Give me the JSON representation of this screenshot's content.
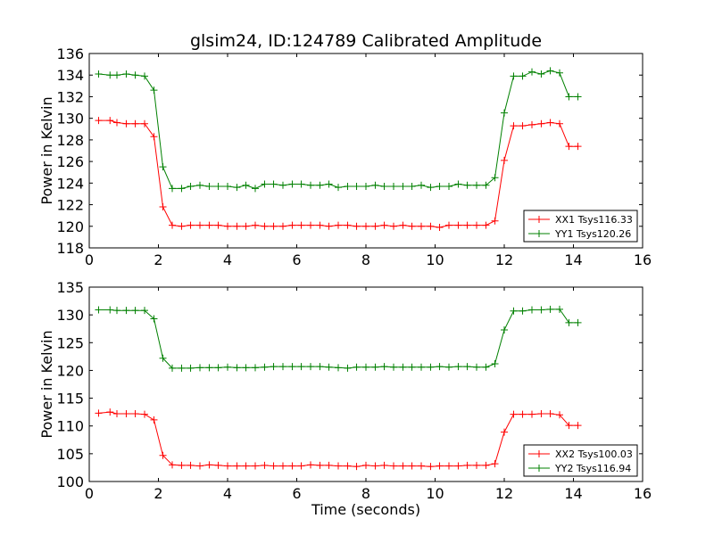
{
  "title": "glsim24, ID:124789 Calibrated Amplitude",
  "chart_data": [
    {
      "type": "line",
      "title": "glsim24, ID:124789 Calibrated Amplitude",
      "xlabel": "",
      "ylabel": "Power in Kelvin",
      "xlim": [
        0,
        16
      ],
      "ylim": [
        118,
        136
      ],
      "xticks": [
        "0",
        "2",
        "4",
        "6",
        "8",
        "10",
        "12",
        "14",
        "16"
      ],
      "yticks": [
        "118",
        "120",
        "122",
        "124",
        "126",
        "128",
        "130",
        "132",
        "134",
        "136"
      ],
      "legend_position": "lower-right",
      "x": [
        0.27,
        0.6,
        0.8,
        1.07,
        1.33,
        1.6,
        1.87,
        2.13,
        2.4,
        2.67,
        2.93,
        3.2,
        3.47,
        3.73,
        4.0,
        4.27,
        4.53,
        4.8,
        5.07,
        5.33,
        5.6,
        5.87,
        6.13,
        6.4,
        6.67,
        6.93,
        7.2,
        7.47,
        7.73,
        8.0,
        8.27,
        8.53,
        8.8,
        9.07,
        9.33,
        9.6,
        9.87,
        10.13,
        10.4,
        10.67,
        10.93,
        11.2,
        11.47,
        11.73,
        12.0,
        12.27,
        12.53,
        12.8,
        13.07,
        13.33,
        13.6,
        13.87,
        14.13
      ],
      "series": [
        {
          "name": "XX1 Tsys116.33",
          "color": "#ff0000",
          "values": [
            129.8,
            129.8,
            129.6,
            129.5,
            129.5,
            129.5,
            128.3,
            121.8,
            120.1,
            120.0,
            120.1,
            120.1,
            120.1,
            120.1,
            120.0,
            120.0,
            120.0,
            120.1,
            120.0,
            120.0,
            120.0,
            120.1,
            120.1,
            120.1,
            120.1,
            120.0,
            120.1,
            120.1,
            120.0,
            120.0,
            120.0,
            120.1,
            120.0,
            120.1,
            120.0,
            120.0,
            120.0,
            119.9,
            120.1,
            120.1,
            120.1,
            120.1,
            120.1,
            120.5,
            126.1,
            129.3,
            129.3,
            129.4,
            129.5,
            129.6,
            129.5,
            127.4,
            127.4
          ]
        },
        {
          "name": "YY1 Tsys120.26",
          "color": "#008000",
          "values": [
            134.1,
            134.0,
            134.0,
            134.1,
            134.0,
            133.9,
            132.6,
            125.5,
            123.5,
            123.5,
            123.7,
            123.8,
            123.7,
            123.7,
            123.7,
            123.6,
            123.8,
            123.5,
            123.9,
            123.9,
            123.8,
            123.9,
            123.9,
            123.8,
            123.8,
            123.9,
            123.6,
            123.7,
            123.7,
            123.7,
            123.8,
            123.7,
            123.7,
            123.7,
            123.7,
            123.8,
            123.6,
            123.7,
            123.7,
            123.9,
            123.8,
            123.8,
            123.8,
            124.5,
            130.5,
            133.9,
            133.9,
            134.3,
            134.1,
            134.4,
            134.2,
            132.0,
            132.0
          ]
        }
      ]
    },
    {
      "type": "line",
      "title": "",
      "xlabel": "Time (seconds)",
      "ylabel": "Power in Kelvin",
      "xlim": [
        0,
        16
      ],
      "ylim": [
        100,
        135
      ],
      "xticks": [
        "0",
        "2",
        "4",
        "6",
        "8",
        "10",
        "12",
        "14",
        "16"
      ],
      "yticks": [
        "100",
        "105",
        "110",
        "115",
        "120",
        "125",
        "130",
        "135"
      ],
      "legend_position": "lower-right",
      "x": [
        0.27,
        0.6,
        0.8,
        1.07,
        1.33,
        1.6,
        1.87,
        2.13,
        2.4,
        2.67,
        2.93,
        3.2,
        3.47,
        3.73,
        4.0,
        4.27,
        4.53,
        4.8,
        5.07,
        5.33,
        5.6,
        5.87,
        6.13,
        6.4,
        6.67,
        6.93,
        7.2,
        7.47,
        7.73,
        8.0,
        8.27,
        8.53,
        8.8,
        9.07,
        9.33,
        9.6,
        9.87,
        10.13,
        10.4,
        10.67,
        10.93,
        11.2,
        11.47,
        11.73,
        12.0,
        12.27,
        12.53,
        12.8,
        13.07,
        13.33,
        13.6,
        13.87,
        14.13
      ],
      "series": [
        {
          "name": "XX2 Tsys100.03",
          "color": "#ff0000",
          "values": [
            112.3,
            112.5,
            112.2,
            112.2,
            112.2,
            112.1,
            111.1,
            104.7,
            103.0,
            102.9,
            102.9,
            102.8,
            103.0,
            102.9,
            102.8,
            102.8,
            102.8,
            102.8,
            102.9,
            102.8,
            102.8,
            102.8,
            102.8,
            103.0,
            102.9,
            102.9,
            102.8,
            102.8,
            102.7,
            102.9,
            102.8,
            102.9,
            102.8,
            102.8,
            102.8,
            102.8,
            102.7,
            102.8,
            102.8,
            102.8,
            102.9,
            102.9,
            102.9,
            103.2,
            108.9,
            112.1,
            112.1,
            112.1,
            112.2,
            112.2,
            112.0,
            110.1,
            110.1
          ]
        },
        {
          "name": "YY2 Tsys116.94",
          "color": "#008000",
          "values": [
            130.9,
            130.9,
            130.8,
            130.8,
            130.8,
            130.8,
            129.3,
            122.2,
            120.4,
            120.4,
            120.4,
            120.5,
            120.5,
            120.5,
            120.6,
            120.5,
            120.5,
            120.5,
            120.6,
            120.7,
            120.7,
            120.7,
            120.7,
            120.7,
            120.7,
            120.6,
            120.5,
            120.4,
            120.6,
            120.6,
            120.6,
            120.7,
            120.6,
            120.6,
            120.6,
            120.6,
            120.6,
            120.7,
            120.6,
            120.7,
            120.7,
            120.6,
            120.6,
            121.2,
            127.3,
            130.7,
            130.7,
            130.9,
            130.9,
            131.0,
            131.0,
            128.6,
            128.6
          ]
        }
      ]
    }
  ]
}
